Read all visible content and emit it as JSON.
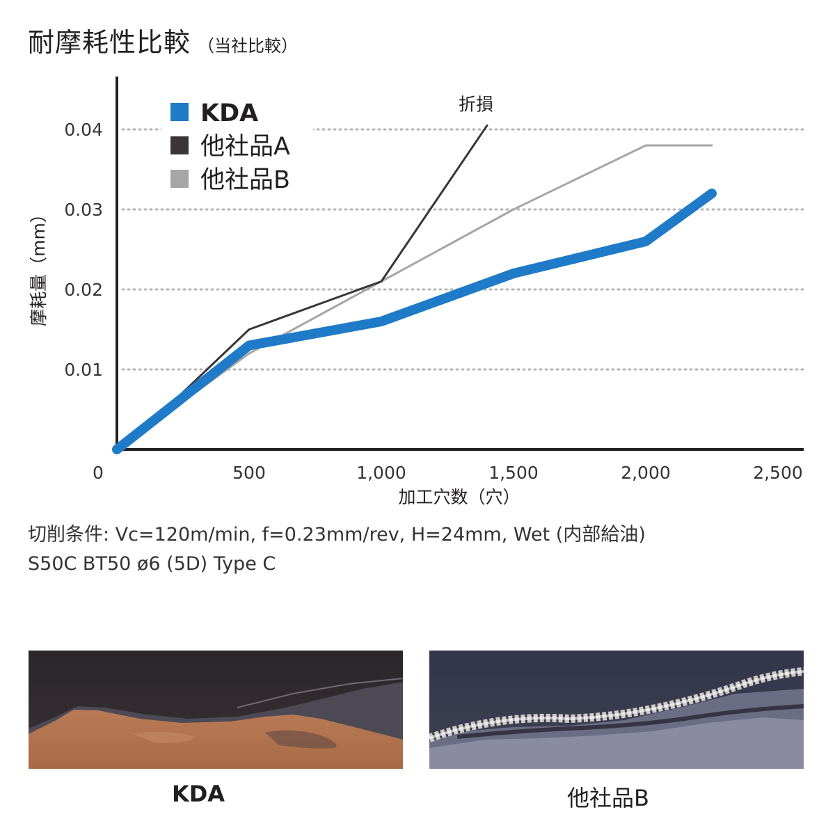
{
  "header": {
    "title": "耐摩耗性比較",
    "subtitle": "（当社比較）"
  },
  "chart_data": {
    "type": "line",
    "title": "耐摩耗性比較",
    "subtitle": "（当社比較）",
    "xlabel": "加工穴数（穴）",
    "ylabel": "摩耗量（mm）",
    "xlim": [
      0,
      2500
    ],
    "ylim": [
      0,
      0.045
    ],
    "x_ticks": [
      0,
      500,
      1000,
      1500,
      2000,
      2500
    ],
    "x_tick_labels": [
      "0",
      "500",
      "1,000",
      "1,500",
      "2,000",
      "2,500"
    ],
    "y_ticks": [
      0.01,
      0.02,
      0.03,
      0.04
    ],
    "y_tick_labels": [
      "0.01",
      "0.02",
      "0.03",
      "0.04"
    ],
    "grid": "horizontal-dotted",
    "legend_position": "top-left",
    "series": [
      {
        "name": "KDA",
        "color": "#1f7bc8",
        "style": "thick",
        "x": [
          0,
          500,
          1000,
          1500,
          2000,
          2250
        ],
        "y": [
          0,
          0.013,
          0.016,
          0.022,
          0.026,
          0.032
        ]
      },
      {
        "name": "他社品A",
        "color": "#3a3536",
        "style": "thin",
        "x": [
          0,
          150,
          500,
          1000,
          1400
        ],
        "y": [
          0,
          0.004,
          0.015,
          0.021,
          0.0405
        ]
      },
      {
        "name": "他社品B",
        "color": "#a6a6a6",
        "style": "thin",
        "x": [
          0,
          500,
          1000,
          1500,
          2000,
          2250
        ],
        "y": [
          0,
          0.012,
          0.021,
          0.03,
          0.038,
          0.038
        ]
      }
    ],
    "annotations": [
      {
        "text": "折損",
        "x": 1400,
        "y": 0.0405
      }
    ]
  },
  "conditions": {
    "line1": "切削条件: Vc=120m/min, f=0.23mm/rev, H=24mm, Wet (内部給油)",
    "line2": "S50C  BT50  ø6 (5D)  Type C"
  },
  "photos": [
    {
      "caption": "KDA"
    },
    {
      "caption": "他社品B"
    }
  ]
}
